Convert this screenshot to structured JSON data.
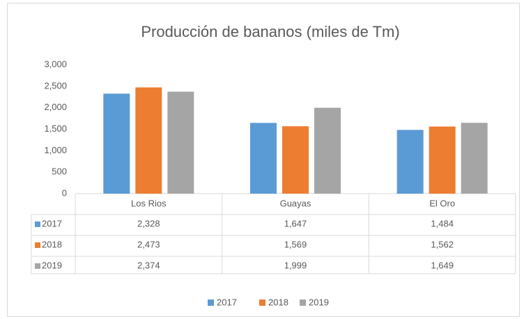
{
  "chart_data": {
    "type": "bar",
    "title": "Producción de bananos (miles de Tm)",
    "categories": [
      "Los Rios",
      "Guayas",
      "El Oro"
    ],
    "series": [
      {
        "name": "2017",
        "color": "#5b9bd5",
        "values": [
          2328,
          1647,
          1484
        ],
        "value_labels": [
          "2,328",
          "1,647",
          "1,484"
        ]
      },
      {
        "name": "2018",
        "color": "#ed7d31",
        "values": [
          2473,
          1569,
          1562
        ],
        "value_labels": [
          "2,473",
          "1,569",
          "1,562"
        ]
      },
      {
        "name": "2019",
        "color": "#a5a5a5",
        "values": [
          2374,
          1999,
          1649
        ],
        "value_labels": [
          "2,374",
          "1,999",
          "1,649"
        ]
      }
    ],
    "ylim": [
      0,
      3000
    ],
    "yticks": [
      0,
      500,
      {
        "value": 1000,
        "label": "1,000"
      },
      {
        "value": 1500,
        "label": "1,500"
      },
      {
        "value": 2000,
        "label": "2,000"
      },
      {
        "value": 2500,
        "label": "2,500"
      },
      {
        "value": 3000,
        "label": "3,000"
      }
    ],
    "grid": false,
    "legend": "bottom"
  }
}
